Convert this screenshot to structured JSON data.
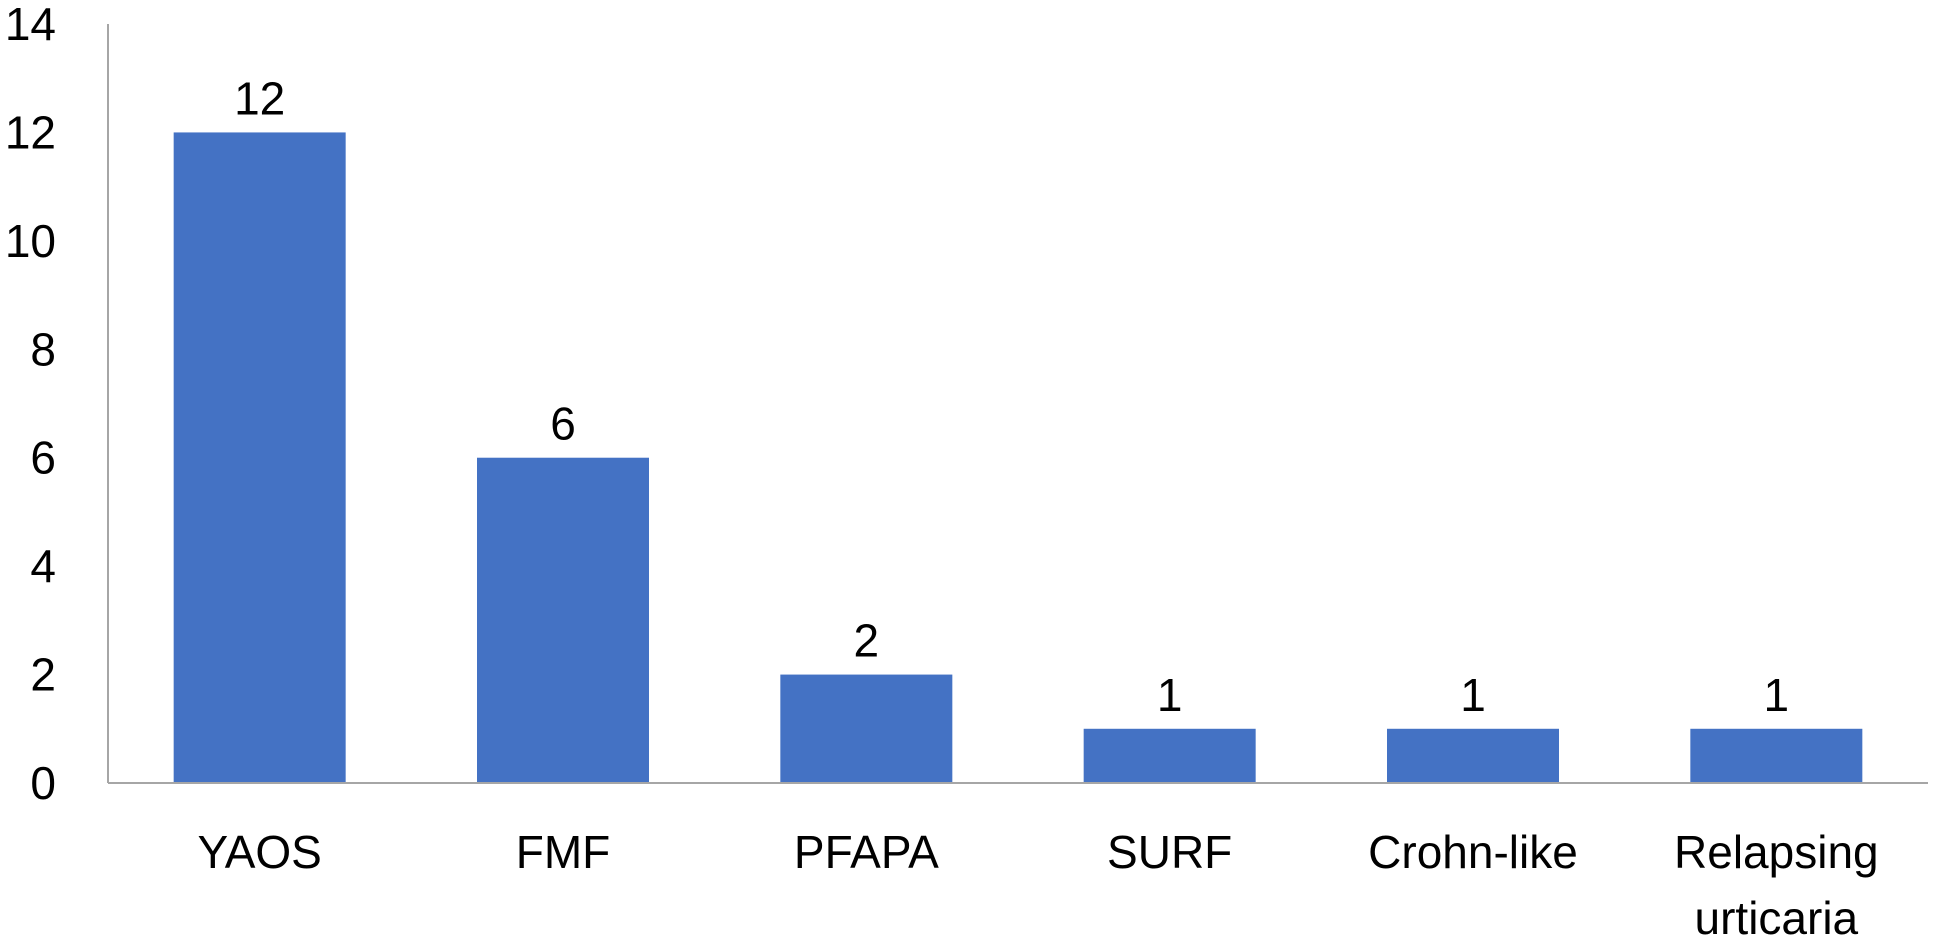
{
  "chart_data": {
    "type": "bar",
    "categories": [
      "YAOS",
      "FMF",
      "PFAPA",
      "SURF",
      "Crohn-like",
      "Relapsing urticaria"
    ],
    "category_lines": [
      [
        "YAOS"
      ],
      [
        "FMF"
      ],
      [
        "PFAPA"
      ],
      [
        "SURF"
      ],
      [
        "Crohn-like"
      ],
      [
        "Relapsing",
        "urticaria"
      ]
    ],
    "values": [
      12,
      6,
      2,
      1,
      1,
      1
    ],
    "data_labels": [
      "12",
      "6",
      "2",
      "1",
      "1",
      "1"
    ],
    "ylim": [
      0,
      14
    ],
    "yticks": [
      0,
      2,
      4,
      6,
      8,
      10,
      12,
      14
    ],
    "title": "",
    "xlabel": "",
    "ylabel": "",
    "grid": false,
    "legend": "none",
    "bar_color": "#4472C4",
    "axis_color": "#A6A6A6"
  }
}
